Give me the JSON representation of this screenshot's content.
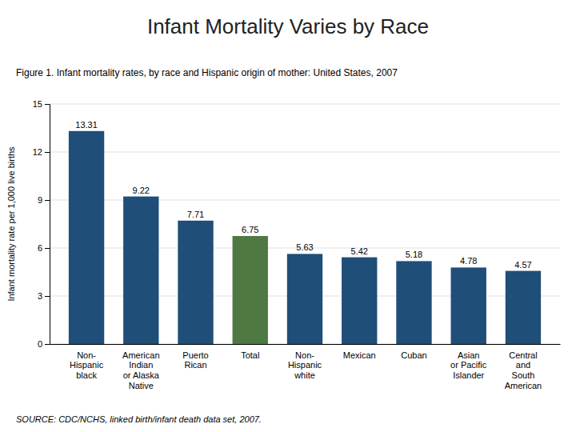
{
  "chart_data": {
    "type": "bar",
    "title": "Infant Mortality Varies by Race",
    "subtitle": "Figure 1. Infant mortality rates, by race and Hispanic origin of mother: United States, 2007",
    "ylabel": "Infant mortality rate per 1,000 live births",
    "categories": [
      "Non-\nHispanic\nblack",
      "American\nIndian\nor Alaska\nNative",
      "Puerto\nRican",
      "Total",
      "Non-\nHispanic\nwhite",
      "Mexican",
      "Cuban",
      "Asian\nor Pacific\nIslander",
      "Central\nand\nSouth\nAmerican"
    ],
    "values": [
      13.31,
      9.22,
      7.71,
      6.75,
      5.63,
      5.42,
      5.18,
      4.78,
      4.57
    ],
    "colors": [
      "#1F4E79",
      "#1F4E79",
      "#1F4E79",
      "#4F7942",
      "#1F4E79",
      "#1F4E79",
      "#1F4E79",
      "#1F4E79",
      "#1F4E79"
    ],
    "ylim": [
      0,
      15
    ],
    "yticks": [
      0,
      3,
      6,
      9,
      12,
      15
    ],
    "grid": true,
    "data_labels": true,
    "annotations": [
      {
        "text": "SOURCE: CDC/NCHS, linked birth/infant death data set, 2007."
      }
    ]
  }
}
